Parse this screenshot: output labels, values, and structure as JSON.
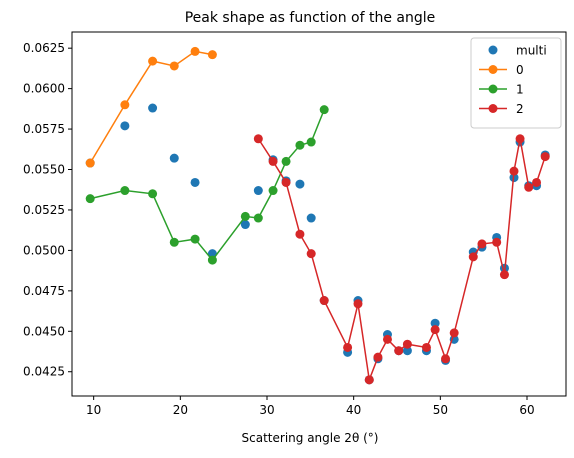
{
  "chart_data": {
    "type": "scatter",
    "title": "Peak shape as function of the angle",
    "xlabel": "Scattering angle 2θ (°)",
    "ylabel": "",
    "xlim": [
      7.5,
      64.5
    ],
    "ylim": [
      0.041,
      0.0635
    ],
    "xticks": [
      10,
      20,
      30,
      40,
      50,
      60
    ],
    "yticks": [
      0.0425,
      0.045,
      0.0475,
      0.05,
      0.0525,
      0.055,
      0.0575,
      0.06,
      0.0625
    ],
    "ytick_labels": [
      "0.0425",
      "0.0450",
      "0.0475",
      "0.0500",
      "0.0525",
      "0.0550",
      "0.0575",
      "0.0600",
      "0.0625"
    ],
    "xtick_labels": [
      "10",
      "20",
      "30",
      "40",
      "50",
      "60"
    ],
    "legend_position": "top-right",
    "grid": false,
    "series": [
      {
        "name": "multi",
        "style": "markers",
        "color": "#1f77b4",
        "x": [
          9.6,
          13.6,
          16.8,
          19.3,
          21.7,
          23.7,
          27.5,
          29.0,
          30.7,
          32.2,
          33.8,
          35.1,
          36.6,
          39.3,
          40.5,
          41.8,
          42.8,
          43.9,
          45.2,
          46.2,
          48.4,
          49.4,
          50.6,
          51.6,
          53.8,
          54.8,
          56.5,
          57.4,
          58.5,
          59.2,
          60.2,
          61.1,
          62.1
        ],
        "y": [
          0.0554,
          0.0577,
          0.0588,
          0.0557,
          0.0542,
          0.0498,
          0.0516,
          0.0537,
          0.0556,
          0.0543,
          0.0541,
          0.052,
          0.0469,
          0.0437,
          0.0469,
          0.042,
          0.0433,
          0.0448,
          0.0438,
          0.0438,
          0.0438,
          0.0455,
          0.0432,
          0.0445,
          0.0499,
          0.0502,
          0.0508,
          0.0489,
          0.0545,
          0.0567,
          0.054,
          0.054,
          0.0559
        ]
      },
      {
        "name": "0",
        "style": "line-markers",
        "color": "#ff7f0e",
        "x": [
          9.6,
          13.6,
          16.8,
          19.3,
          21.7,
          23.7
        ],
        "y": [
          0.0554,
          0.059,
          0.0617,
          0.0614,
          0.0623,
          0.0621
        ]
      },
      {
        "name": "1",
        "style": "line-markers",
        "color": "#2ca02c",
        "x": [
          9.6,
          13.6,
          16.8,
          19.3,
          21.7,
          23.7,
          27.5,
          29.0,
          30.7,
          32.2,
          33.8,
          35.1,
          36.6
        ],
        "y": [
          0.0532,
          0.0537,
          0.0535,
          0.0505,
          0.0507,
          0.0494,
          0.0521,
          0.052,
          0.0537,
          0.0555,
          0.0565,
          0.0567,
          0.0587
        ]
      },
      {
        "name": "2",
        "style": "line-markers",
        "color": "#d62728",
        "x": [
          29.0,
          30.7,
          32.2,
          33.8,
          35.1,
          36.6,
          39.3,
          40.5,
          41.8,
          42.8,
          43.9,
          45.2,
          46.2,
          48.4,
          49.4,
          50.6,
          51.6,
          53.8,
          54.8,
          56.5,
          57.4,
          58.5,
          59.2,
          60.2,
          61.1,
          62.1
        ],
        "y": [
          0.0569,
          0.0555,
          0.0542,
          0.051,
          0.0498,
          0.0469,
          0.044,
          0.0467,
          0.042,
          0.0434,
          0.0445,
          0.0438,
          0.0442,
          0.044,
          0.0451,
          0.0433,
          0.0449,
          0.0496,
          0.0504,
          0.0505,
          0.0485,
          0.0549,
          0.0569,
          0.0539,
          0.0542,
          0.0558
        ]
      }
    ]
  }
}
